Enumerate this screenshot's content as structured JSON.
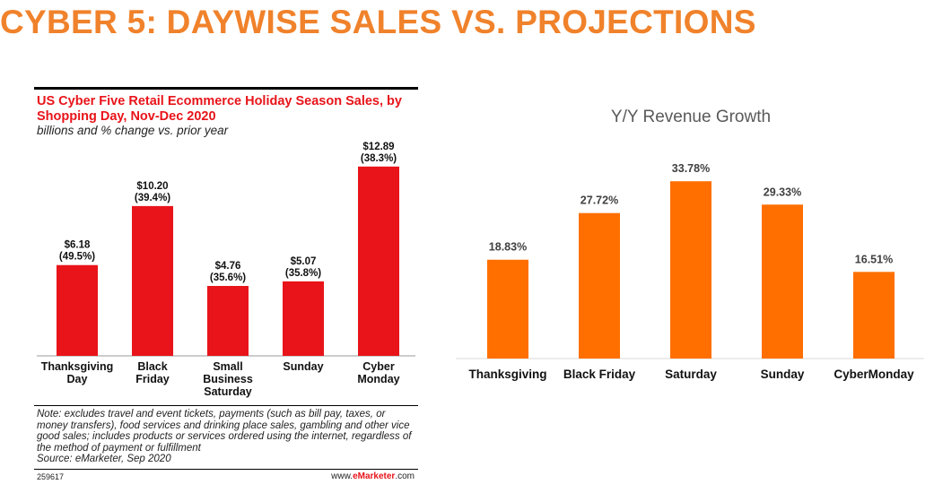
{
  "page_title": "CYBER 5: DAYWISE SALES VS. PROJECTIONS",
  "colors": {
    "title_orange": "#f0822b",
    "emarketer_red": "#e8141a",
    "growth_orange": "#ff6f00"
  },
  "chart_data": [
    {
      "type": "bar",
      "title": "US Cyber Five Retail Ecommerce Holiday Season Sales, by Shopping Day, Nov-Dec 2020",
      "subtitle": "billions and % change vs. prior year",
      "categories": [
        "Thanksgiving Day",
        "Black Friday",
        "Small Business Saturday",
        "Sunday",
        "Cyber Monday"
      ],
      "values": [
        6.18,
        10.2,
        4.76,
        5.07,
        12.89
      ],
      "value_labels": [
        "$6.18",
        "$10.20",
        "$4.76",
        "$5.07",
        "$12.89"
      ],
      "pct_labels": [
        "(49.5%)",
        "(39.4%)",
        "(35.6%)",
        "(35.8%)",
        "(38.3%)"
      ],
      "ylim": [
        0,
        13
      ],
      "bar_color": "#e8141a",
      "note": "Note: excludes travel and event tickets, payments (such as bill pay, taxes, or money transfers), food services and drinking place sales, gambling and other vice good sales; includes products or services ordered using the internet, regardless of the method of payment or fulfillment",
      "source": "Source: eMarketer, Sep 2020",
      "chart_id": "259617",
      "site_prefix": "www.",
      "site_brand": "eMarketer",
      "site_suffix": ".com"
    },
    {
      "type": "bar",
      "title": "Y/Y Revenue Growth",
      "categories": [
        "Thanksgiving",
        "Black Friday",
        "Saturday",
        "Sunday",
        "CyberMonday"
      ],
      "values": [
        18.83,
        27.72,
        33.78,
        29.33,
        16.51
      ],
      "value_labels": [
        "18.83%",
        "27.72%",
        "33.78%",
        "29.33%",
        "16.51%"
      ],
      "ylim": [
        0,
        34.5
      ],
      "bar_color": "#ff6f00"
    }
  ]
}
